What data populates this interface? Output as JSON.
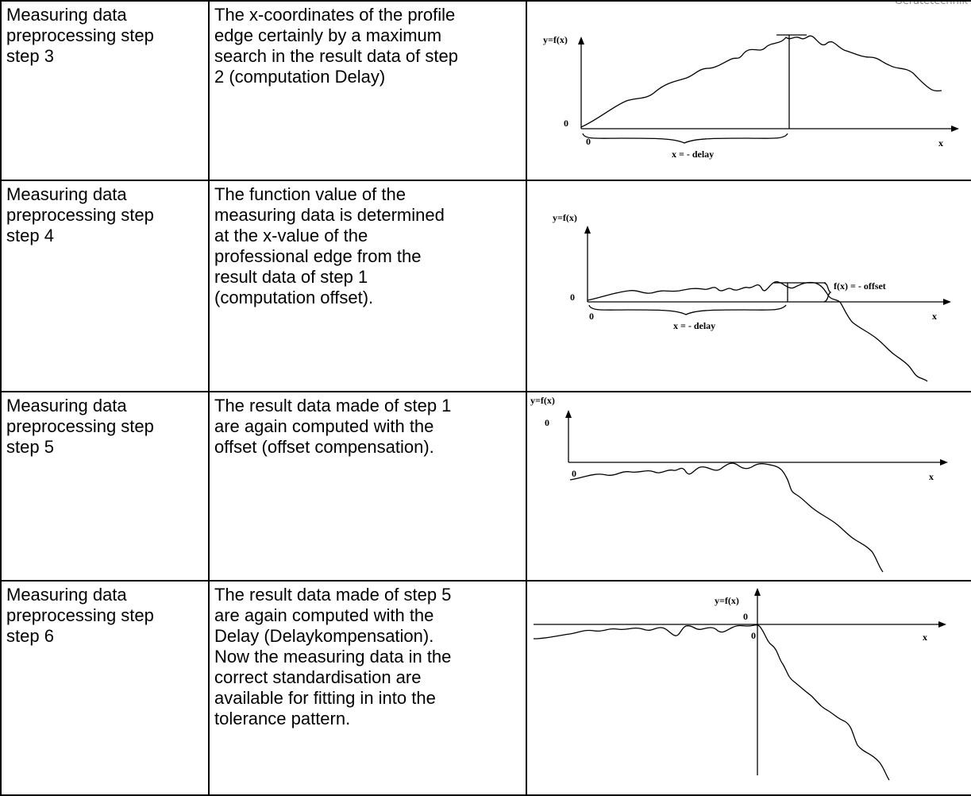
{
  "header_mark": "Gerätetechnik",
  "rows": [
    {
      "label": "Measuring data\npreprocessing step\nstep 3",
      "description": "The x-coordinates of the profile\nedge certainly by a maximum\nsearch in the result data of step\n2 (computation Delay)",
      "figure": {
        "y_axis": "y=f(x)",
        "origin_y": "0",
        "origin_x": "0",
        "x_axis": "x",
        "brace": "x = - delay"
      }
    },
    {
      "label": "Measuring data\npreprocessing step\nstep 4",
      "description": "The function value of the\nmeasuring data is determined\nat the x-value of the\nprofessional edge from the\nresult data of step 1\n(computation offset).",
      "figure": {
        "y_axis": "y=f(x)",
        "origin_y": "0",
        "origin_x": "0",
        "x_axis": "x",
        "brace": "x = - delay",
        "offset": "f(x) = - offset"
      }
    },
    {
      "label": "Measuring data\npreprocessing step\nstep 5",
      "description": "The result data made of step 1\nare again computed with the\noffset (offset compensation).",
      "figure": {
        "y_axis": "y=f(x)",
        "origin_y": "0",
        "origin_x": "0",
        "x_axis": "x"
      }
    },
    {
      "label": "Measuring data\npreprocessing step\nstep 6",
      "description": "The result data made of step 5\nare again computed with the\nDelay (Delaykompensation).\nNow the measuring data in the\ncorrect standardisation are\navailable for fitting in into the\ntolerance pattern.",
      "figure": {
        "y_axis": "y=f(x)",
        "origin_y": "0",
        "origin_x": "0",
        "x_axis": "x"
      }
    }
  ]
}
